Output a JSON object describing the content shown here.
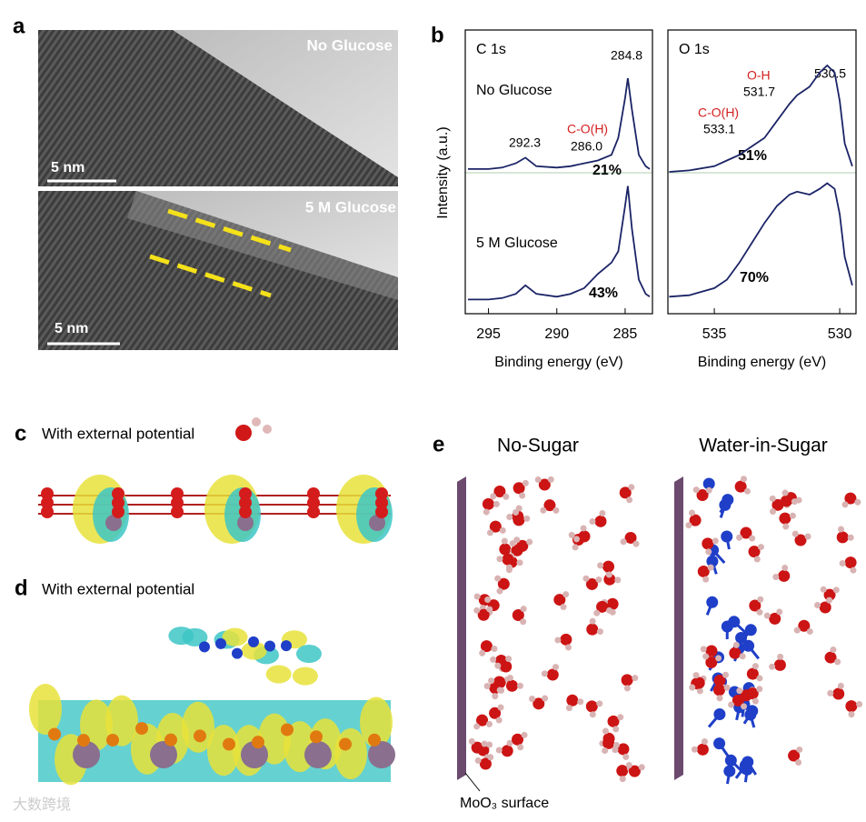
{
  "panel_labels": [
    "a",
    "b",
    "c",
    "d",
    "e"
  ],
  "tem": {
    "top": {
      "label": "No Glucose",
      "scale": "5 nm"
    },
    "bottom": {
      "label": "5 M Glucose",
      "scale": "5 nm"
    }
  },
  "dft": {
    "c": "With external potential",
    "d": "With external potential"
  },
  "md": {
    "left": "No-Sugar",
    "right": "Water-in-Sugar",
    "surface": "MoO₃ surface"
  },
  "watermark": "大数跨境",
  "chart_data": [
    {
      "type": "line",
      "title": "C 1s",
      "ylabel": "Intensity (a.u.)",
      "xlabel": "Binding energy (eV)",
      "x": [
        296.5,
        295,
        294,
        293,
        292.3,
        291.5,
        290,
        289,
        288,
        287,
        286,
        285.5,
        285,
        284.8,
        284.5,
        284,
        283.5,
        283.2
      ],
      "xlim": [
        296.7,
        283
      ],
      "xticks": [
        295,
        290,
        285
      ],
      "ylim": [
        0,
        100
      ],
      "series": [
        {
          "name": "No Glucose",
          "color": "#1b2466",
          "values": [
            51,
            51,
            51.5,
            53,
            55,
            52,
            51.5,
            52,
            53,
            54,
            56,
            62,
            76,
            83,
            72,
            56,
            52,
            51
          ]
        },
        {
          "name": "5 M Glucose",
          "color": "#1b2466",
          "values": [
            5,
            5,
            5.5,
            7,
            10,
            7,
            6,
            7,
            9,
            14,
            18,
            22,
            38,
            45,
            30,
            12,
            7,
            6
          ]
        }
      ],
      "annotations": [
        "284.8",
        "292.3",
        "C-O(H)",
        "286.0",
        "21%",
        "43%"
      ]
    },
    {
      "type": "line",
      "title": "O 1s",
      "xlabel": "Binding energy (eV)",
      "x": [
        536.8,
        536,
        535,
        534.5,
        534,
        533.5,
        533,
        532.5,
        532,
        531.7,
        531.2,
        530.8,
        530.5,
        530.2,
        530,
        529.8,
        529.5
      ],
      "xlim": [
        536.85,
        529.35
      ],
      "xticks": [
        535,
        530
      ],
      "ylim": [
        0,
        100
      ],
      "series": [
        {
          "color": "#1b2466",
          "values": [
            50,
            50.5,
            52,
            54,
            56,
            59,
            62,
            68,
            74,
            77,
            80,
            85,
            87.5,
            85,
            75,
            60,
            52
          ]
        },
        {
          "color": "#1b2466",
          "values": [
            6,
            6.5,
            9,
            12,
            18,
            25,
            32,
            38,
            42,
            43,
            42,
            44,
            46,
            44,
            35,
            20,
            10
          ]
        }
      ],
      "annotations": [
        "530.5",
        "O-H",
        "531.7",
        "C-O(H)",
        "533.1",
        "51%",
        "70%"
      ]
    }
  ]
}
